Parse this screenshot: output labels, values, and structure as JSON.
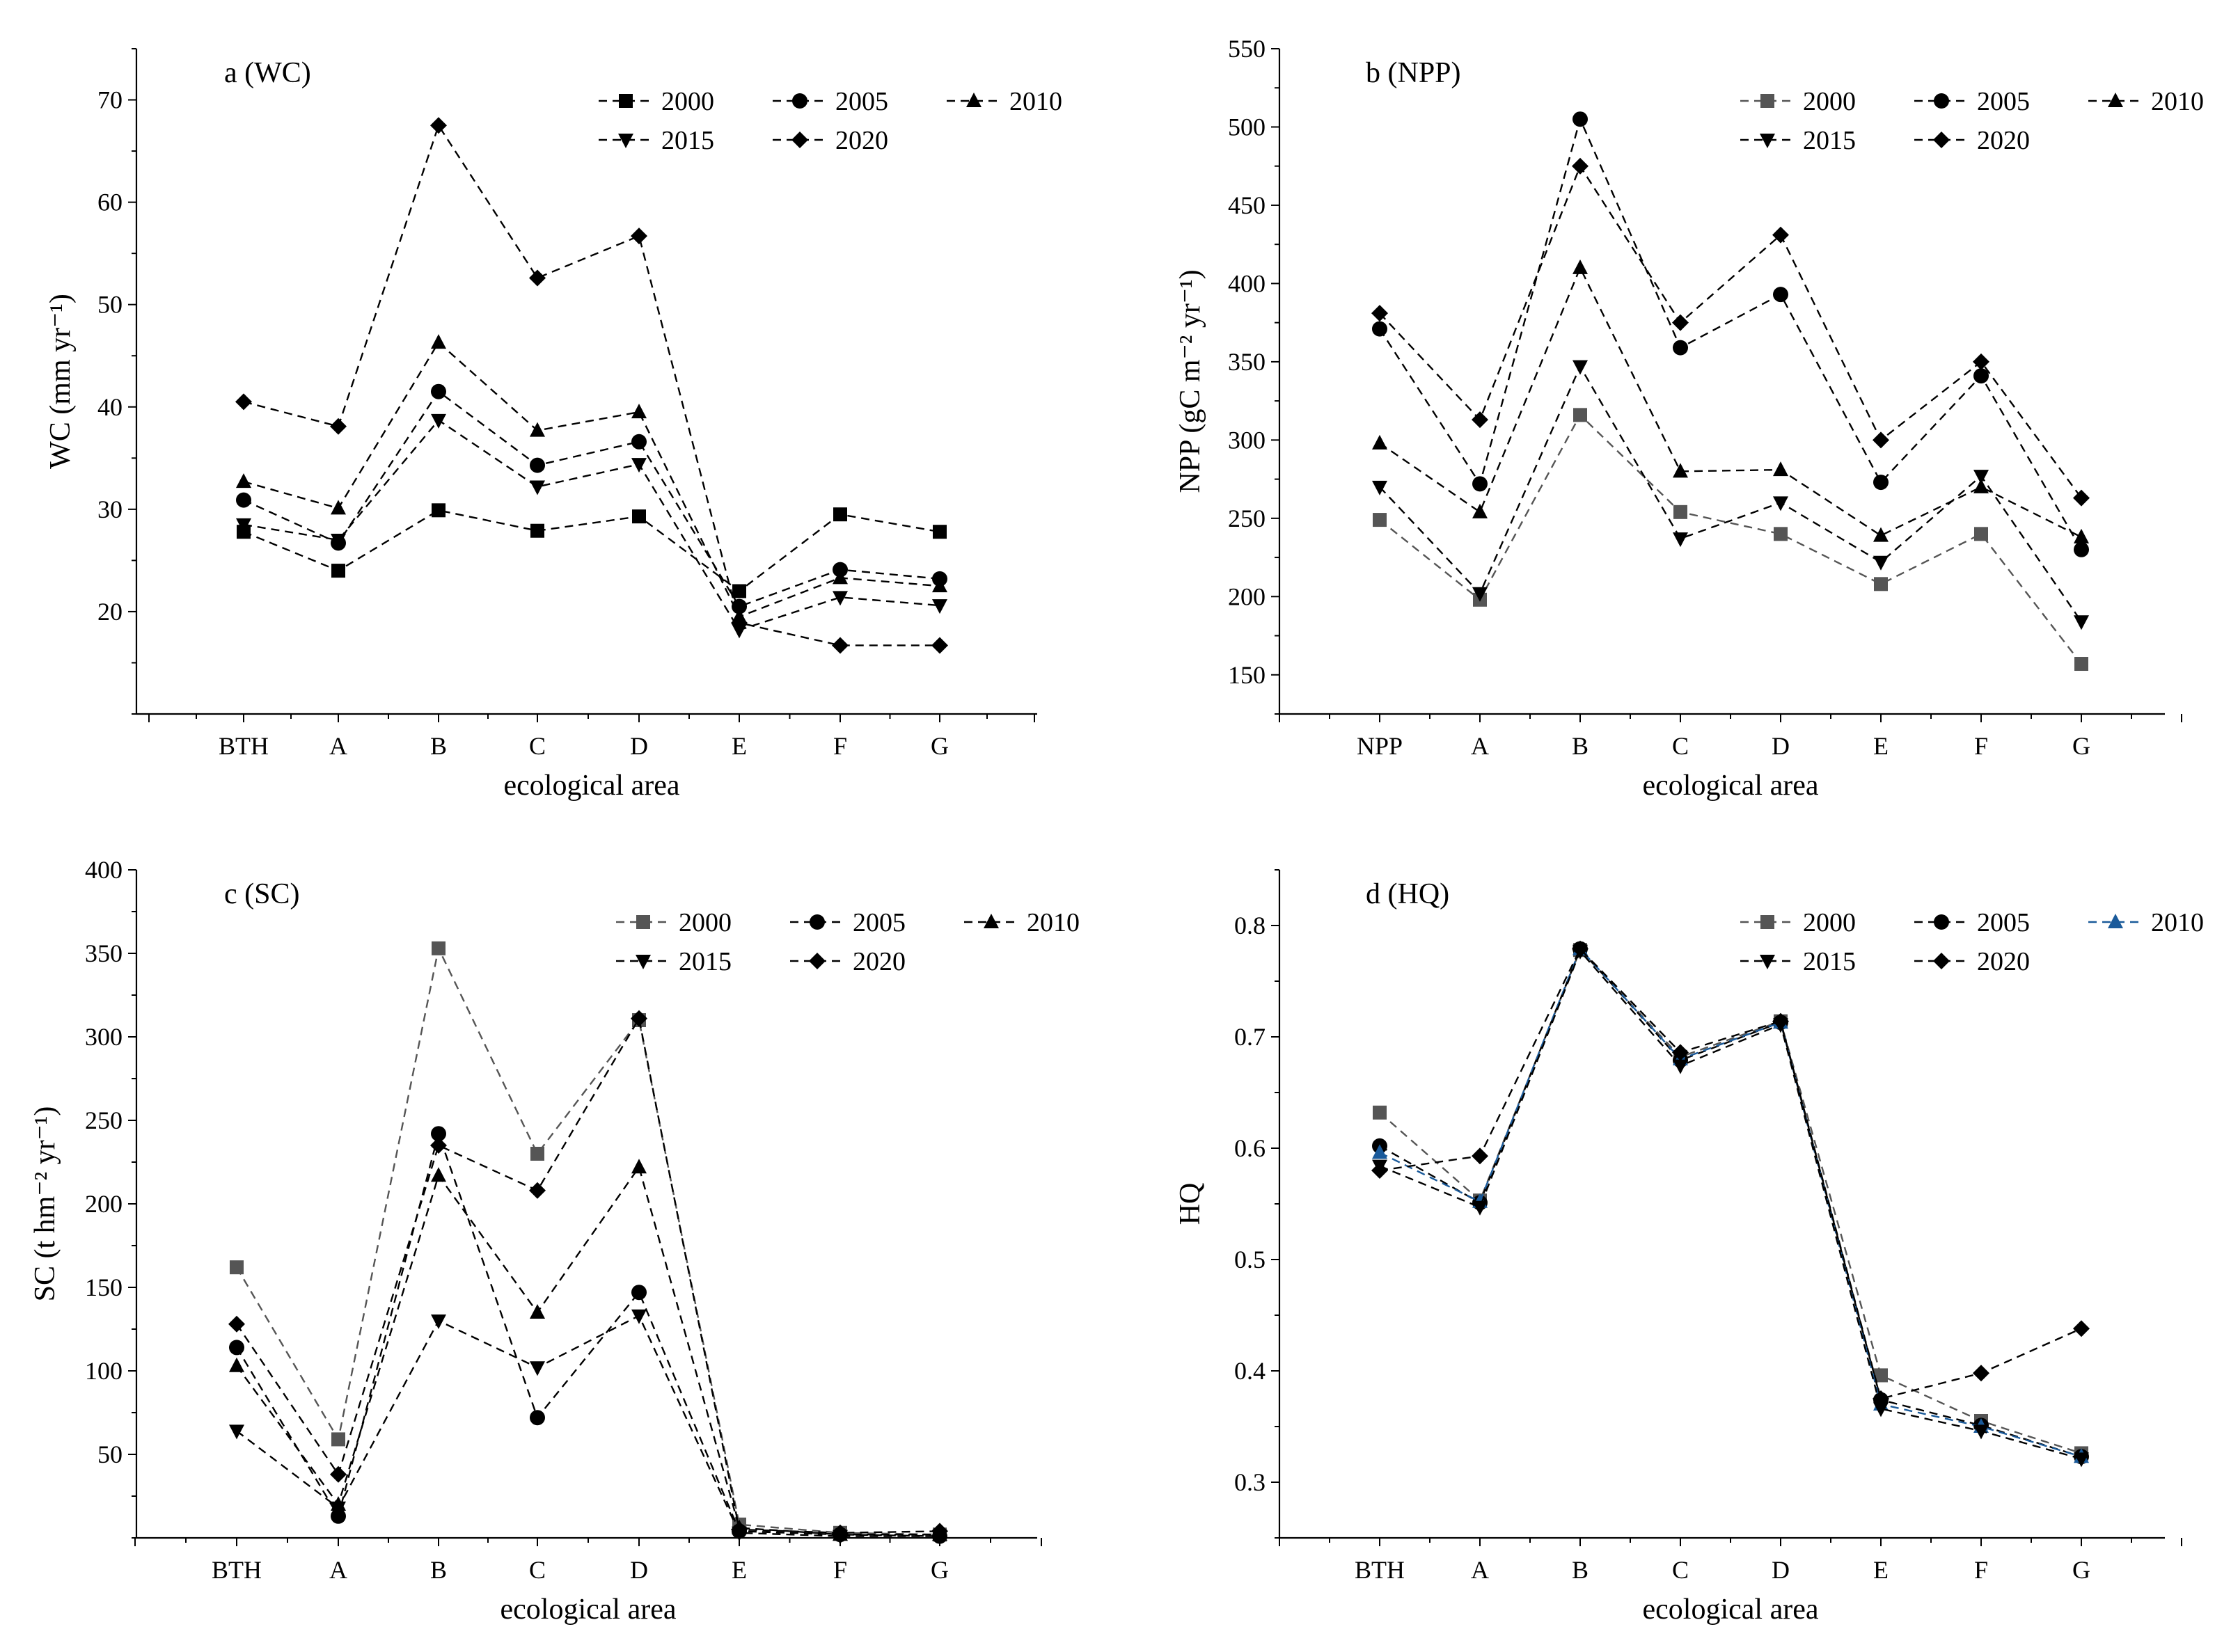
{
  "figure": {
    "xlabel_shared": "ecological area"
  },
  "chart_data": [
    {
      "type": "line",
      "title": "a (WC)",
      "ylabel": "WC (mm yr⁻¹)",
      "xlabel": "ecological area",
      "categories": [
        "BTH",
        "A",
        "B",
        "C",
        "D",
        "E",
        "F",
        "G"
      ],
      "ylim": [
        10,
        75
      ],
      "yticks": [
        20,
        30,
        40,
        50,
        60,
        70
      ],
      "legend_rows": [
        [
          "2000",
          "2005",
          "2010"
        ],
        [
          "2015",
          "2020"
        ]
      ],
      "series": [
        {
          "name": "2000",
          "marker": "square",
          "color": "#000000",
          "values": [
            27.8,
            24.0,
            29.9,
            27.9,
            29.3,
            22.0,
            29.5,
            27.8
          ]
        },
        {
          "name": "2005",
          "marker": "circle",
          "color": "#000000",
          "values": [
            30.9,
            26.7,
            41.5,
            34.3,
            36.6,
            20.5,
            24.1,
            23.2
          ]
        },
        {
          "name": "2010",
          "marker": "triangle-up",
          "color": "#000000",
          "values": [
            32.7,
            30.1,
            46.3,
            37.7,
            39.5,
            19.5,
            23.3,
            22.5
          ]
        },
        {
          "name": "2015",
          "marker": "triangle-down",
          "color": "#000000",
          "values": [
            28.5,
            27.0,
            38.7,
            32.2,
            34.4,
            18.2,
            21.4,
            20.6
          ]
        },
        {
          "name": "2020",
          "marker": "diamond",
          "color": "#000000",
          "values": [
            40.5,
            38.1,
            67.5,
            52.6,
            56.7,
            18.9,
            16.7,
            16.7
          ]
        }
      ]
    },
    {
      "type": "line",
      "title": "b (NPP)",
      "ylabel": "NPP (gC m⁻² yr⁻¹)",
      "xlabel": "ecological area",
      "categories": [
        "NPP",
        "A",
        "B",
        "C",
        "D",
        "E",
        "F",
        "G"
      ],
      "ylim": [
        125,
        550
      ],
      "yticks": [
        150,
        200,
        250,
        300,
        350,
        400,
        450,
        500,
        550
      ],
      "legend_rows": [
        [
          "2000",
          "2005",
          "2010"
        ],
        [
          "2015",
          "2020"
        ]
      ],
      "series": [
        {
          "name": "2000",
          "marker": "square",
          "color": "#555555",
          "values": [
            249,
            198,
            316,
            254,
            240,
            208,
            240,
            157
          ]
        },
        {
          "name": "2005",
          "marker": "circle",
          "color": "#000000",
          "values": [
            371,
            272,
            505,
            359,
            393,
            273,
            341,
            230
          ]
        },
        {
          "name": "2010",
          "marker": "triangle-up",
          "color": "#000000",
          "values": [
            298,
            254,
            410,
            280,
            281,
            239,
            270,
            238
          ]
        },
        {
          "name": "2015",
          "marker": "triangle-down",
          "color": "#000000",
          "values": [
            270,
            202,
            347,
            237,
            260,
            222,
            277,
            184
          ]
        },
        {
          "name": "2020",
          "marker": "diamond",
          "color": "#000000",
          "values": [
            381,
            313,
            475,
            375,
            431,
            300,
            350,
            263
          ]
        }
      ]
    },
    {
      "type": "line",
      "title": "c (SC)",
      "ylabel": "SC (t hm⁻² yr⁻¹)",
      "xlabel": "ecological area",
      "categories": [
        "BTH",
        "A",
        "B",
        "C",
        "D",
        "E",
        "F",
        "G"
      ],
      "ylim": [
        0,
        400
      ],
      "yticks": [
        50,
        100,
        150,
        200,
        250,
        300,
        350,
        400
      ],
      "legend_rows": [
        [
          "2000",
          "2005",
          "2010"
        ],
        [
          "2015",
          "2020"
        ]
      ],
      "series": [
        {
          "name": "2000",
          "marker": "square",
          "color": "#555555",
          "values": [
            162,
            59,
            353,
            230,
            310,
            8,
            3,
            2
          ]
        },
        {
          "name": "2005",
          "marker": "circle",
          "color": "#000000",
          "values": [
            114,
            13,
            242,
            72,
            147,
            4,
            2,
            1
          ]
        },
        {
          "name": "2010",
          "marker": "triangle-up",
          "color": "#000000",
          "values": [
            103,
            20,
            217,
            135,
            222,
            6,
            2,
            2
          ]
        },
        {
          "name": "2015",
          "marker": "triangle-down",
          "color": "#000000",
          "values": [
            64,
            18,
            130,
            102,
            133,
            3,
            1,
            1
          ]
        },
        {
          "name": "2020",
          "marker": "diamond",
          "color": "#000000",
          "values": [
            128,
            38,
            235,
            208,
            311,
            5,
            3,
            4
          ]
        }
      ]
    },
    {
      "type": "line",
      "title": "d (HQ)",
      "ylabel": "HQ",
      "xlabel": "ecological area",
      "categories": [
        "BTH",
        "A",
        "B",
        "C",
        "D",
        "E",
        "F",
        "G"
      ],
      "ylim": [
        0.25,
        0.85
      ],
      "yticks": [
        0.3,
        0.4,
        0.5,
        0.6,
        0.7,
        0.8
      ],
      "legend_rows": [
        [
          "2000",
          "2005",
          "2010"
        ],
        [
          "2015",
          "2020"
        ]
      ],
      "series": [
        {
          "name": "2000",
          "marker": "square",
          "color": "#555555",
          "values": [
            0.632,
            0.553,
            0.778,
            0.682,
            0.714,
            0.396,
            0.355,
            0.326
          ]
        },
        {
          "name": "2005",
          "marker": "circle",
          "color": "#000000",
          "values": [
            0.602,
            0.551,
            0.779,
            0.679,
            0.713,
            0.374,
            0.351,
            0.323
          ]
        },
        {
          "name": "2010",
          "marker": "triangle-up",
          "color": "#1a5a9a",
          "values": [
            0.596,
            0.552,
            0.779,
            0.68,
            0.713,
            0.37,
            0.35,
            0.323
          ]
        },
        {
          "name": "2015",
          "marker": "triangle-down",
          "color": "#000000",
          "values": [
            0.584,
            0.547,
            0.777,
            0.674,
            0.711,
            0.366,
            0.346,
            0.321
          ]
        },
        {
          "name": "2020",
          "marker": "diamond",
          "color": "#000000",
          "values": [
            0.58,
            0.593,
            0.779,
            0.686,
            0.714,
            0.375,
            0.398,
            0.438
          ]
        }
      ]
    }
  ]
}
